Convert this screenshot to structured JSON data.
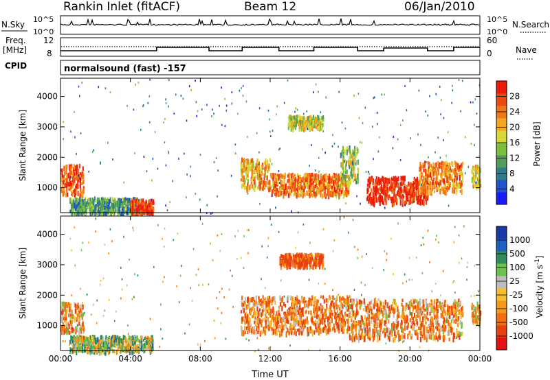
{
  "header": {
    "station": "Rankin Inlet (fitACF)",
    "beam": "Beam 12",
    "date": "06/Jan/2010"
  },
  "noise_panel": {
    "left_label": "N.Sky",
    "right_label": "N.Search",
    "left_ticks": [
      "10^5",
      "10^0"
    ],
    "right_ticks": [
      "10^5",
      "10^0"
    ]
  },
  "freq_panel": {
    "left_label_1": "Freq.",
    "left_label_2": "[MHz]",
    "cpid_label": "CPID",
    "right_label": "Nave",
    "left_ticks": [
      "12",
      "8"
    ],
    "right_ticks": [
      "60",
      "0"
    ]
  },
  "cpid_text": "normalsound (fast) -157",
  "chart_data": [
    {
      "type": "heatmap",
      "title": "",
      "parameter": "Power",
      "xlabel": "",
      "ylabel": "Slant Range [km]",
      "x_ticks": [
        "00:00",
        "04:00",
        "08:00",
        "12:00",
        "16:00",
        "20:00",
        "00:00"
      ],
      "y_ticks": [
        1000,
        2000,
        3000,
        4000
      ],
      "ylim": [
        180,
        4600
      ],
      "colorbar": {
        "label": "Power [dB]",
        "ticks": [
          4,
          8,
          12,
          16,
          20,
          24,
          28
        ],
        "range": [
          0,
          30
        ],
        "colors": [
          "#1a1aff",
          "#2255cc",
          "#2e7d8c",
          "#4f9e5a",
          "#7dbf3a",
          "#d8d83a",
          "#f5a623",
          "#f07818",
          "#ee4a10",
          "#ee1a0a"
        ]
      },
      "echo_regions": [
        {
          "t0": 0.0,
          "t1": 1.3,
          "r0": 800,
          "r1": 1800,
          "power": 24
        },
        {
          "t0": 0.5,
          "t1": 4.5,
          "r0": 200,
          "r1": 700,
          "power": 10
        },
        {
          "t0": 4.0,
          "t1": 5.3,
          "r0": 200,
          "r1": 650,
          "power": 27
        },
        {
          "t0": 10.3,
          "t1": 12.0,
          "r0": 1000,
          "r1": 2000,
          "power": 20
        },
        {
          "t0": 12.0,
          "t1": 16.5,
          "r0": 800,
          "r1": 1500,
          "power": 23
        },
        {
          "t0": 13.0,
          "t1": 15.0,
          "r0": 3000,
          "r1": 3400,
          "power": 16
        },
        {
          "t0": 16.0,
          "t1": 17.0,
          "r0": 1200,
          "r1": 2400,
          "power": 14
        },
        {
          "t0": 17.5,
          "t1": 21.0,
          "r0": 550,
          "r1": 1400,
          "power": 28
        },
        {
          "t0": 20.5,
          "t1": 23.0,
          "r0": 900,
          "r1": 1900,
          "power": 22
        },
        {
          "t0": 23.5,
          "t1": 24.0,
          "r0": 1100,
          "r1": 1800,
          "power": 18
        }
      ]
    },
    {
      "type": "heatmap",
      "title": "",
      "parameter": "Velocity",
      "xlabel": "Time UT",
      "ylabel": "Slant Range [km]",
      "x_ticks": [
        "00:00",
        "04:00",
        "08:00",
        "12:00",
        "16:00",
        "20:00",
        "00:00"
      ],
      "y_ticks": [
        1000,
        2000,
        3000,
        4000
      ],
      "ylim": [
        180,
        4600
      ],
      "colorbar": {
        "label": "Velocity [m s^-1]",
        "ticks": [
          "1000",
          "500",
          "100",
          "25",
          "-25",
          "-100",
          "-500",
          "-1000"
        ],
        "colors": [
          "#1a3aa8",
          "#1f5fc4",
          "#2e8c5a",
          "#6cc24a",
          "#bdbdbd",
          "#f5c030",
          "#f59a18",
          "#f07010",
          "#e84010",
          "#e81010"
        ]
      },
      "echo_regions": [
        {
          "t0": 0.0,
          "t1": 1.3,
          "r0": 800,
          "r1": 1800,
          "velocity": -150
        },
        {
          "t0": 0.5,
          "t1": 5.3,
          "r0": 200,
          "r1": 700,
          "velocity": 80
        },
        {
          "t0": 10.3,
          "t1": 16.5,
          "r0": 800,
          "r1": 2000,
          "velocity": -200
        },
        {
          "t0": 12.5,
          "t1": 15.0,
          "r0": 3000,
          "r1": 3400,
          "velocity": -300
        },
        {
          "t0": 16.5,
          "t1": 23.0,
          "r0": 600,
          "r1": 1900,
          "velocity": -150
        },
        {
          "t0": 23.5,
          "t1": 24.0,
          "r0": 1100,
          "r1": 1800,
          "velocity": -100
        }
      ]
    }
  ]
}
